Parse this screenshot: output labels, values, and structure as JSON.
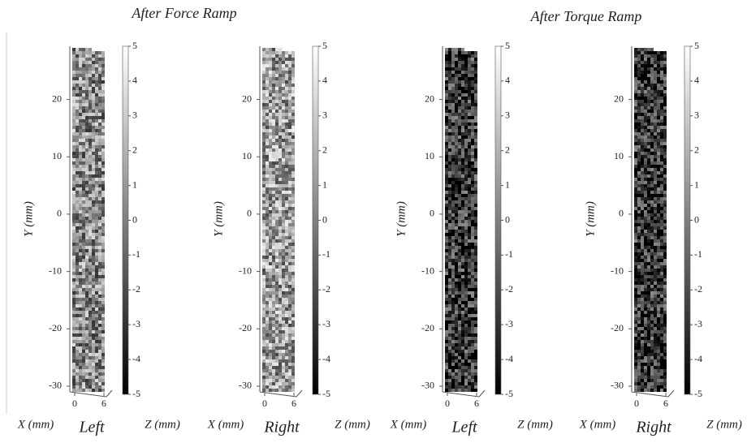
{
  "figure": {
    "group_titles": [
      "After Force Ramp",
      "After Torque Ramp"
    ]
  },
  "chart_data": [
    {
      "type": "surface",
      "label": "Left",
      "ylabel": "Y (mm)",
      "xlabel": "X (mm)",
      "zlabel": "Z (mm)",
      "ylim": [
        -31,
        29
      ],
      "yticks": [
        -30,
        -20,
        -10,
        0,
        10,
        20
      ],
      "xticks": [
        0,
        6
      ],
      "surface_color": "#8a8a8a",
      "colorbar": {
        "lim": [
          -5,
          5
        ],
        "ticks": [
          -5,
          -4,
          -3,
          -2,
          -1,
          0,
          1,
          2,
          3,
          4,
          5
        ]
      }
    },
    {
      "type": "surface",
      "label": "Right",
      "ylabel": "Y (mm)",
      "xlabel": "X (mm)",
      "zlabel": "Z (mm)",
      "ylim": [
        -31,
        29
      ],
      "yticks": [
        -30,
        -20,
        -10,
        0,
        10,
        20
      ],
      "xticks": [
        0,
        6
      ],
      "surface_color": "#9a9a9a",
      "colorbar": {
        "lim": [
          -5,
          5
        ],
        "ticks": [
          -5,
          -4,
          -3,
          -2,
          -1,
          0,
          1,
          2,
          3,
          4,
          5
        ]
      }
    },
    {
      "type": "surface",
      "label": "Left",
      "ylabel": "Y (mm)",
      "xlabel": "X (mm)",
      "zlabel": "Z (mm)",
      "ylim": [
        -31,
        29
      ],
      "yticks": [
        -30,
        -20,
        -10,
        0,
        10,
        20
      ],
      "xticks": [
        0,
        6
      ],
      "surface_color": "#3a3a3a",
      "colorbar": {
        "lim": [
          -5,
          5
        ],
        "ticks": [
          -5,
          -4,
          -3,
          -2,
          -1,
          0,
          1,
          2,
          3,
          4,
          5
        ]
      }
    },
    {
      "type": "surface",
      "label": "Right",
      "ylabel": "Y (mm)",
      "xlabel": "X (mm)",
      "zlabel": "Z (mm)",
      "ylim": [
        -31,
        29
      ],
      "yticks": [
        -30,
        -20,
        -10,
        0,
        10,
        20
      ],
      "xticks": [
        0,
        6
      ],
      "surface_color": "#353535",
      "colorbar": {
        "lim": [
          -5,
          5
        ],
        "ticks": [
          -5,
          -4,
          -3,
          -2,
          -1,
          0,
          1,
          2,
          3,
          4,
          5
        ]
      }
    }
  ]
}
